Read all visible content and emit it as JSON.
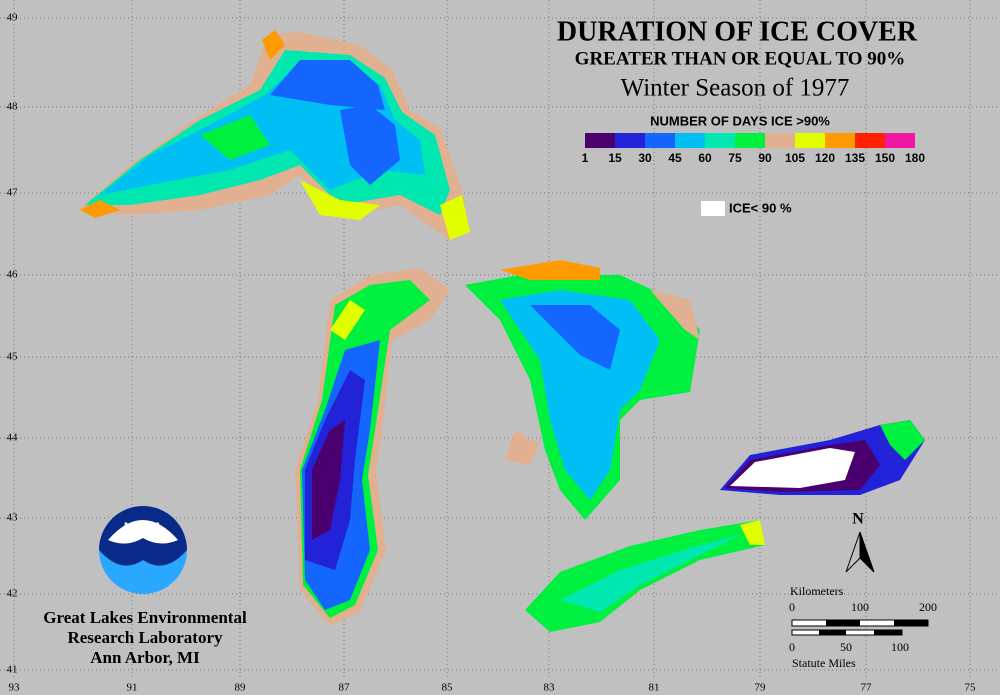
{
  "title": "DURATION OF ICE COVER",
  "subtitle": "GREATER THAN OR EQUAL TO 90%",
  "season": "Winter Season of 1977",
  "legend": {
    "title": "NUMBER OF DAYS ICE >90%",
    "labels": [
      "1",
      "15",
      "30",
      "45",
      "60",
      "75",
      "90",
      "105",
      "120",
      "135",
      "150",
      "180"
    ],
    "colors": [
      "#4b0070",
      "#2222d8",
      "#1466ff",
      "#00bff5",
      "#00e8b0",
      "#00f040",
      "#e0b090",
      "#e2ff00",
      "#ff9a00",
      "#ff2200",
      "#f018a0"
    ]
  },
  "ice_note": "ICE< 90 %",
  "latitudes": [
    "49",
    "48",
    "47",
    "46",
    "45",
    "44",
    "43",
    "42",
    "41"
  ],
  "longitudes": [
    "93",
    "91",
    "89",
    "87",
    "85",
    "83",
    "81",
    "79",
    "77",
    "75"
  ],
  "north": "N",
  "scale": {
    "km_title": "Kilometers",
    "km_ticks": [
      "0",
      "100",
      "200"
    ],
    "mi_ticks": [
      "0",
      "50",
      "100"
    ],
    "mi_title": "Statute Miles"
  },
  "logo": "NOAA",
  "credit": [
    "Great Lakes Environmental",
    "Research Laboratory",
    "Ann Arbor, MI"
  ]
}
